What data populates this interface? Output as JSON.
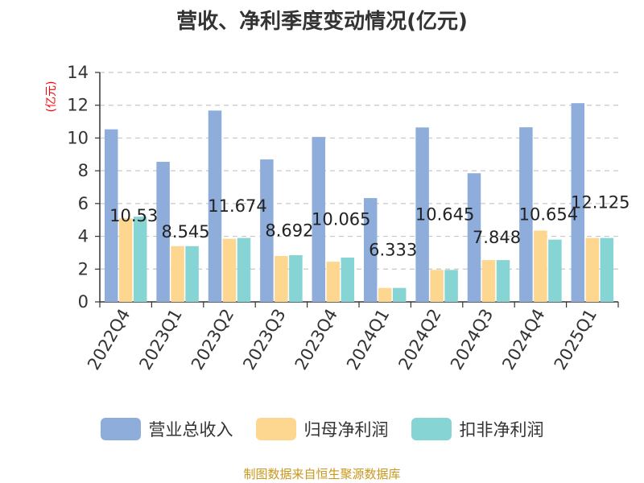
{
  "chart_data": {
    "type": "bar",
    "title": "营收、净利季度变动情况(亿元)",
    "ylabel": "(亿元)",
    "xlabel": "",
    "ylim": [
      0,
      14
    ],
    "yticks": [
      0,
      2,
      4,
      6,
      8,
      10,
      12,
      14
    ],
    "grid": true,
    "legend_position": "bottom",
    "categories": [
      "2022Q4",
      "2023Q1",
      "2023Q2",
      "2023Q3",
      "2023Q4",
      "2024Q1",
      "2024Q2",
      "2024Q3",
      "2024Q4",
      "2025Q1"
    ],
    "series": [
      {
        "name": "营业总收入",
        "color": "#8eaddb",
        "values": [
          10.53,
          8.545,
          11.674,
          8.692,
          10.065,
          6.333,
          10.645,
          7.848,
          10.654,
          12.125
        ],
        "labels": [
          "10.53",
          "8.545",
          "11.674",
          "8.692",
          "10.065",
          "6.333",
          "10.645",
          "7.848",
          "10.654",
          "12.125"
        ]
      },
      {
        "name": "归母净利润",
        "color": "#fdd690",
        "values": [
          5.1,
          3.4,
          3.85,
          2.8,
          2.45,
          0.85,
          1.95,
          2.55,
          4.35,
          3.9
        ]
      },
      {
        "name": "扣非净利润",
        "color": "#86d4d4",
        "values": [
          5.2,
          3.4,
          3.9,
          2.85,
          2.7,
          0.85,
          1.95,
          2.55,
          3.8,
          3.9
        ]
      }
    ]
  },
  "source": "制图数据来自恒生聚源数据库"
}
